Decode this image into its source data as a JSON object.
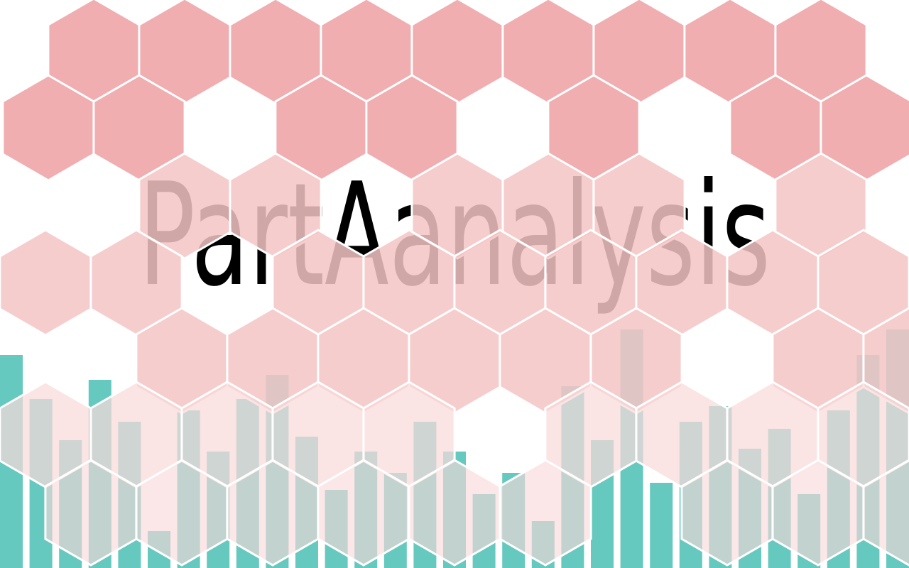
{
  "title": "PartAanalysis",
  "colors": {
    "background": "#ffffff",
    "bar": "#66c9bf",
    "hex_dark": "#f0aeb0",
    "hex_mid": "#f4c4c4",
    "hex_light": "#f8d9d9",
    "title": "#000000"
  }
}
